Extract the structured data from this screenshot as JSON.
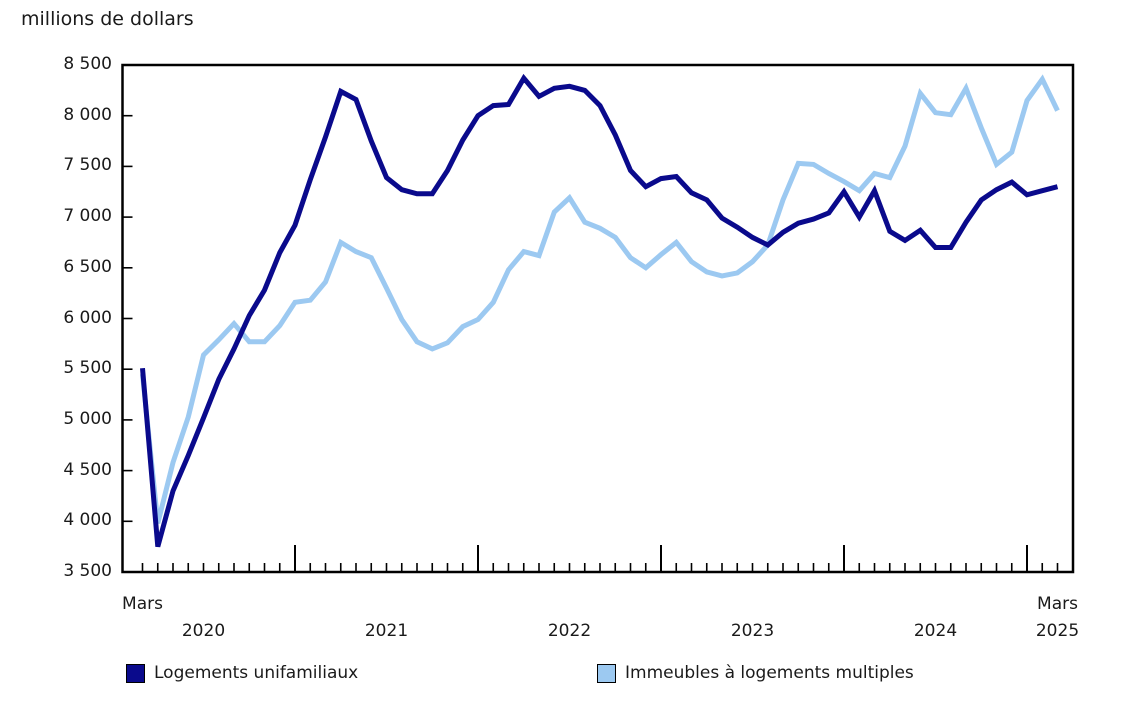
{
  "chart_data": {
    "type": "line",
    "ylabel": "millions de dollars",
    "x_start": "2020-03",
    "x_end": "2025-03",
    "x_frequency": "monthly",
    "y_axis": {
      "min": 3500,
      "max": 8500,
      "tick_interval": 500,
      "tick_labels": [
        "8 500",
        "8 000",
        "7 500",
        "7 000",
        "6 500",
        "6 000",
        "5 500",
        "5 000",
        "4 500",
        "4 000",
        "3 500"
      ]
    },
    "x_axis": {
      "start_label": "Mars",
      "end_label_line1": "Mars",
      "end_label_line2": "2025",
      "year_labels": [
        "2020",
        "2021",
        "2022",
        "2023",
        "2024"
      ]
    },
    "series": [
      {
        "name": "Immeubles à logements multiples",
        "color": "#9cc9f1",
        "values": [
          5450,
          3980,
          4580,
          5030,
          5640,
          5790,
          5950,
          5770,
          5770,
          5930,
          6160,
          6180,
          6360,
          6750,
          6660,
          6600,
          6300,
          5990,
          5770,
          5700,
          5760,
          5920,
          5990,
          6160,
          6480,
          6660,
          6620,
          7050,
          7190,
          6950,
          6890,
          6800,
          6600,
          6500,
          6630,
          6750,
          6560,
          6460,
          6420,
          6450,
          6560,
          6725,
          7170,
          7530,
          7520,
          7430,
          7350,
          7260,
          7430,
          7390,
          7700,
          8220,
          8030,
          8010,
          8270,
          7880,
          7520,
          7640,
          8150,
          8360,
          8050
        ]
      },
      {
        "name": "Logements unifamiliaux",
        "color": "#0a0a8c",
        "values": [
          5510,
          3750,
          4300,
          4650,
          5020,
          5400,
          5700,
          6030,
          6280,
          6650,
          6920,
          7370,
          7790,
          8240,
          8160,
          7750,
          7390,
          7270,
          7230,
          7230,
          7460,
          7760,
          8000,
          8100,
          8110,
          8370,
          8190,
          8270,
          8290,
          8250,
          8100,
          7810,
          7460,
          7300,
          7380,
          7400,
          7240,
          7170,
          6990,
          6900,
          6800,
          6725,
          6850,
          6940,
          6980,
          7040,
          7250,
          7000,
          7260,
          6860,
          6770,
          6870,
          6700,
          6700,
          6950,
          7170,
          7270,
          7345,
          7220,
          7260,
          7300
        ]
      }
    ],
    "grid": false,
    "legend_position": "bottom"
  },
  "legend": {
    "items": [
      {
        "label": "Logements unifamiliaux",
        "color": "#0a0a8c"
      },
      {
        "label": "Immeubles à logements multiples",
        "color": "#9cc9f1"
      }
    ]
  },
  "colors": {
    "axis": "#000000",
    "text": "#1a1a1a",
    "background": "#ffffff"
  }
}
